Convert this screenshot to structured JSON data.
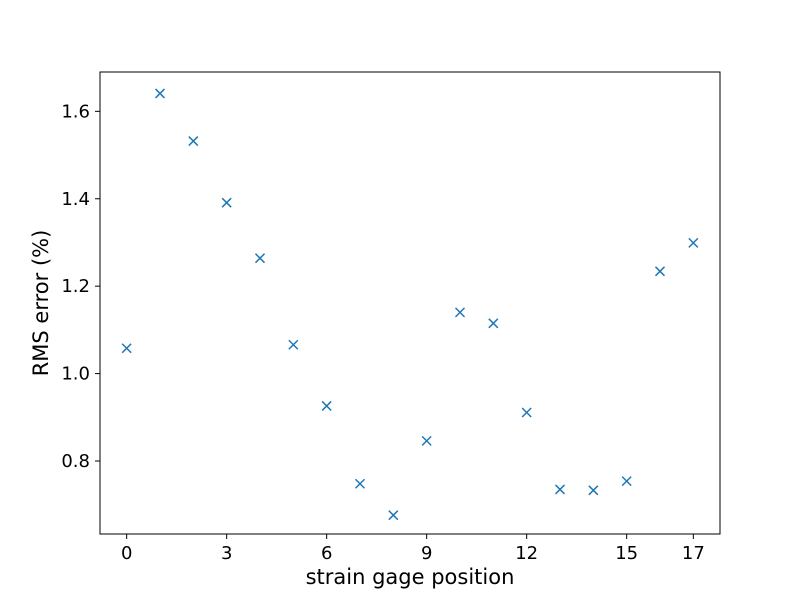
{
  "chart_data": {
    "type": "scatter",
    "title": "",
    "xlabel": "strain gage position",
    "ylabel": "RMS error (%)",
    "xlim": [
      -0.8,
      17.8
    ],
    "ylim": [
      0.633,
      1.69
    ],
    "xticks": [
      0,
      3,
      6,
      9,
      12,
      15,
      17
    ],
    "xtick_labels": [
      "0",
      "3",
      "6",
      "9",
      "12",
      "15",
      "17"
    ],
    "yticks": [
      0.8,
      1.0,
      1.2,
      1.4,
      1.6
    ],
    "ytick_labels": [
      "0.8",
      "1.0",
      "1.2",
      "1.4",
      "1.6"
    ],
    "grid": false,
    "legend": "none",
    "marker": "x",
    "color": "#1f77b4",
    "series": [
      {
        "x": [
          0,
          1,
          2,
          3,
          4,
          5,
          6,
          7,
          8,
          9,
          10,
          11,
          12,
          13,
          14,
          15,
          16,
          17
        ],
        "y": [
          1.058,
          1.641,
          1.532,
          1.391,
          1.264,
          1.066,
          0.926,
          0.748,
          0.676,
          0.846,
          1.14,
          1.115,
          0.911,
          0.735,
          0.733,
          0.754,
          1.234,
          1.299
        ]
      }
    ]
  }
}
